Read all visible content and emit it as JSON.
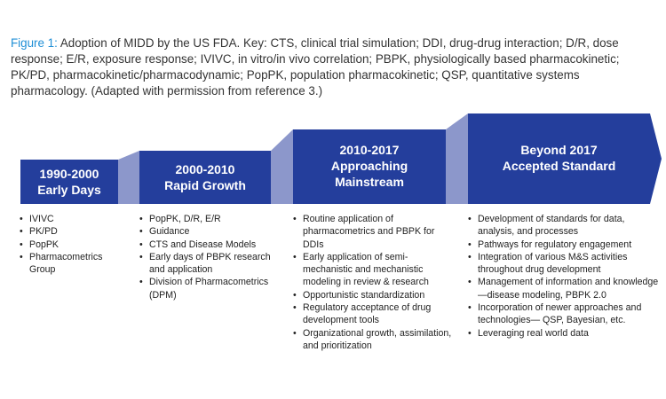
{
  "caption": {
    "figure_label": "Figure 1:",
    "text": " Adoption of MIDD by the US FDA. Key: CTS, clinical trial simulation; DDI, drug-drug interaction; D/R, dose response; E/R, exposure response; IVIVC, in vitro/in vivo correlation; PBPK, physiologically based pharmacokinetic; PK/PD, pharmacokinetic/pharmacodynamic; PopPK, population pharmacokinetic; QSP, quantitative systems pharmacology. (Adapted with permission from reference 3.)"
  },
  "colors": {
    "step_fill": "#243e9c",
    "connector_fill": "#8c97cb",
    "caption_label": "#1f8fd6",
    "text": "#222222"
  },
  "stages": [
    {
      "title": [
        "1990-2000",
        "Early Days"
      ],
      "items": [
        "IVIVC",
        "PK/PD",
        "PopPK",
        "Pharmacometrics Group"
      ]
    },
    {
      "title": [
        "2000-2010",
        "Rapid Growth"
      ],
      "items": [
        "PopPK, D/R, E/R",
        "Guidance",
        "CTS and Disease Models",
        "Early days of PBPK research and application",
        "Division of Pharmacometrics (DPM)"
      ]
    },
    {
      "title": [
        "2010-2017",
        "Approaching",
        "Mainstream"
      ],
      "items": [
        "Routine application of pharmacometrics and PBPK for DDIs",
        "Early application of semi-mechanistic and mechanistic modeling in review & research",
        "Opportunistic standardization",
        "Regulatory acceptance of drug development tools",
        "Organizational growth, assimilation, and prioritization"
      ]
    },
    {
      "title": [
        "Beyond 2017",
        "Accepted Standard"
      ],
      "items": [
        "Development of standards for data, analysis, and processes",
        "Pathways for regulatory engagement",
        "Integration of various M&S activities throughout drug development",
        "Management of information and knowledge—disease modeling, PBPK 2.0",
        "Incorporation of newer approaches and technologies— QSP, Bayesian, etc.",
        "Leveraging real world data"
      ]
    }
  ]
}
